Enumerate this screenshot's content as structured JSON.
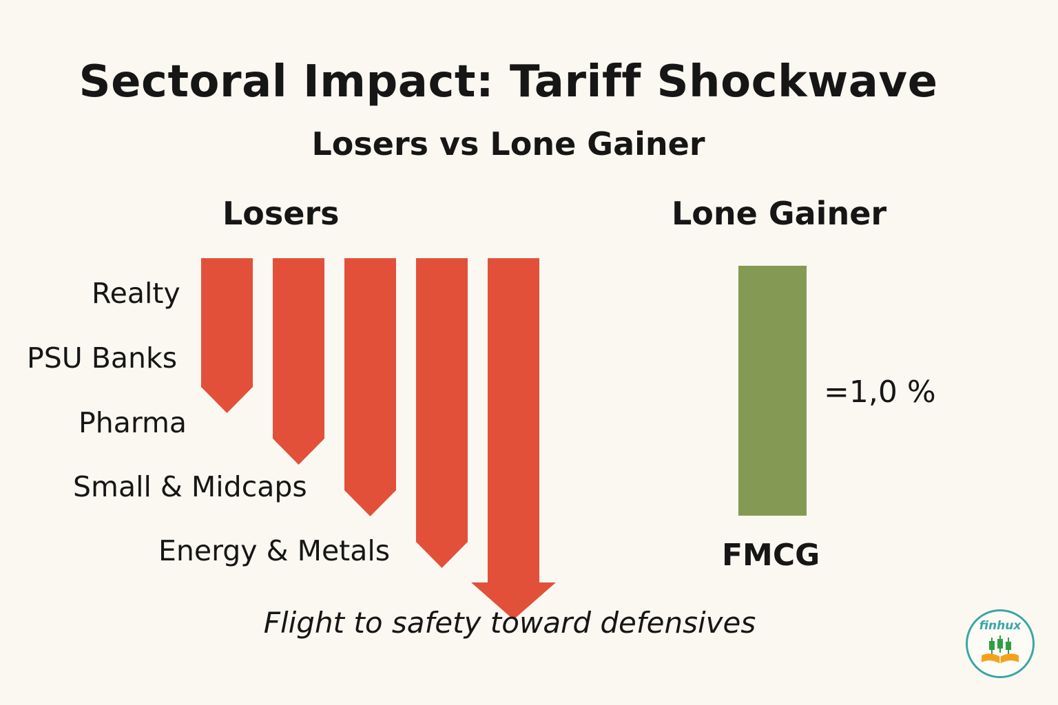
{
  "title": "Sectoral Impact: Tariff Shockwave",
  "subtitle": "Losers vs Lone Gainer",
  "losers_heading": "Losers",
  "gainer_heading": "Lone Gainer",
  "caption": "Flight to safety toward defensives",
  "colors": {
    "loser": "#e2503a",
    "gainer": "#849a54",
    "background": "#fbf8f1",
    "logo_accent": "#3aa6a6",
    "logo_book": "#f4a21d",
    "logo_candles": "#2f9e44"
  },
  "logo": {
    "text": "finhux",
    "icon": "candlestick-book-icon"
  },
  "chart_data": {
    "type": "bar",
    "title": "Sectoral Impact: Tariff Shockwave",
    "subtitle": "Losers vs Lone Gainer",
    "losers": {
      "direction": "down",
      "series_name": "Losers",
      "categories": [
        "Realty",
        "PSU Banks",
        "Pharma",
        "Small & Midcaps",
        "Energy & Metals"
      ],
      "relative_magnitude": [
        1,
        2,
        3,
        4,
        5
      ],
      "values_shown": false
    },
    "gainer": {
      "direction": "up",
      "series_name": "Lone Gainer",
      "category": "FMCG",
      "value_label": "=1,0 %",
      "value_percent": 1.0
    },
    "legend": "none",
    "grid": false,
    "note": "Flight to safety toward defensives"
  }
}
